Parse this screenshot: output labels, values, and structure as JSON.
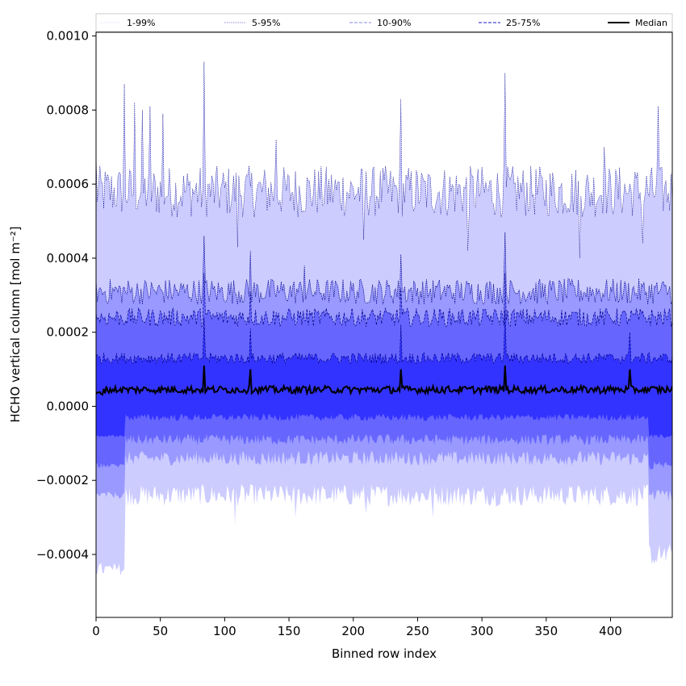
{
  "chart_data": {
    "type": "area",
    "xlabel": "Binned row index",
    "ylabel": "HCHO vertical column [mol m⁻²]",
    "xlim": [
      0,
      448
    ],
    "ylim": [
      -0.00057,
      0.00101
    ],
    "x_ticks": [
      0,
      50,
      100,
      150,
      200,
      250,
      300,
      350,
      400
    ],
    "x_tick_labels": [
      "0",
      "50",
      "100",
      "150",
      "200",
      "250",
      "300",
      "350",
      "400"
    ],
    "y_ticks": [
      -0.0004,
      -0.0002,
      0.0,
      0.0002,
      0.0004,
      0.0006,
      0.0008,
      0.001
    ],
    "y_tick_labels": [
      "−0.0004",
      "−0.0002",
      "0.0000",
      "0.0002",
      "0.0004",
      "0.0006",
      "0.0008",
      "0.0010"
    ],
    "legend_position": "top",
    "legend": [
      {
        "label": "1-99%",
        "color": "#ccccff",
        "style": "dotted",
        "width": 0.6
      },
      {
        "label": "5-95%",
        "color": "#6666cc",
        "style": "dotted",
        "width": 0.7
      },
      {
        "label": "10-90%",
        "color": "#8888ee",
        "style": "dashed",
        "width": 1.0
      },
      {
        "label": "25-75%",
        "color": "#4444dd",
        "style": "dashed",
        "width": 1.2
      },
      {
        "label": "Median",
        "color": "#000000",
        "style": "solid",
        "width": 2.0
      }
    ],
    "bands": [
      {
        "name": "1-99%",
        "fill": "#ccccff",
        "edge": "#00008b",
        "upper": {
          "base": 0.00058,
          "noise": 7e-05,
          "spikes": [
            [
              0,
              0.00068
            ],
            [
              22,
              0.00087
            ],
            [
              30,
              0.00082
            ],
            [
              36,
              0.0008
            ],
            [
              42,
              0.00081
            ],
            [
              52,
              0.00079
            ],
            [
              84,
              0.00093
            ],
            [
              140,
              0.00072
            ],
            [
              237,
              0.00083
            ],
            [
              318,
              0.0009
            ],
            [
              395,
              0.0007
            ],
            [
              437,
              0.00081
            ]
          ],
          "dips": [
            [
              110,
              0.00043
            ],
            [
              208,
              0.00045
            ],
            [
              289,
              0.00042
            ],
            [
              376,
              0.0004
            ],
            [
              425,
              0.00044
            ]
          ]
        },
        "lower": {
          "base": -0.00024,
          "noise": 3e-05,
          "edgeStart": [
            0,
            22,
            -0.00044
          ],
          "edgeEnd": [
            430,
            448,
            -0.0004
          ],
          "dips": [
            [
              108,
              -0.00032
            ],
            [
              155,
              -0.0003
            ],
            [
              210,
              -0.00029
            ],
            [
              262,
              -0.0003
            ]
          ]
        }
      },
      {
        "name": "5-95%",
        "fill": "#9999ff",
        "edge": "#00008b",
        "upper": {
          "base": 0.00031,
          "noise": 3.5e-05,
          "spikes": [
            [
              84,
              0.00046
            ],
            [
              120,
              0.00042
            ],
            [
              162,
              0.00038
            ],
            [
              237,
              0.00041
            ],
            [
              318,
              0.00047
            ]
          ]
        },
        "lower": {
          "base": -0.00014,
          "noise": 2e-05,
          "edgeStart": [
            0,
            22,
            -0.00024
          ],
          "edgeEnd": [
            430,
            448,
            -0.00024
          ]
        }
      },
      {
        "name": "10-90%",
        "fill": "#6666ff",
        "edge": "#00008b",
        "upper": {
          "base": 0.00024,
          "noise": 2.5e-05,
          "spikes": [
            [
              84,
              0.00036
            ],
            [
              120,
              0.00031
            ],
            [
              237,
              0.00032
            ],
            [
              318,
              0.00036
            ]
          ]
        },
        "lower": {
          "base": -9e-05,
          "noise": 1.5e-05,
          "edgeStart": [
            0,
            22,
            -0.00016
          ],
          "edgeEnd": [
            430,
            448,
            -0.00016
          ]
        }
      },
      {
        "name": "25-75%",
        "fill": "#3333ff",
        "edge": "#00008b",
        "upper": {
          "base": 0.00013,
          "noise": 1.5e-05,
          "spikes": [
            [
              84,
              0.00024
            ],
            [
              120,
              0.00021
            ],
            [
              237,
              0.00022
            ],
            [
              318,
              0.00026
            ],
            [
              415,
              0.0002
            ]
          ]
        },
        "lower": {
          "base": -3e-05,
          "noise": 1e-05,
          "edgeStart": [
            0,
            22,
            -8e-05
          ],
          "edgeEnd": [
            430,
            448,
            -8e-05
          ]
        }
      }
    ],
    "median": {
      "name": "Median",
      "base": 4.5e-05,
      "noise": 1e-05,
      "start": 3.5e-05,
      "spikes": [
        [
          84,
          0.00011
        ],
        [
          120,
          0.0001
        ],
        [
          237,
          0.0001
        ],
        [
          318,
          0.00011
        ],
        [
          415,
          0.0001
        ]
      ]
    }
  }
}
